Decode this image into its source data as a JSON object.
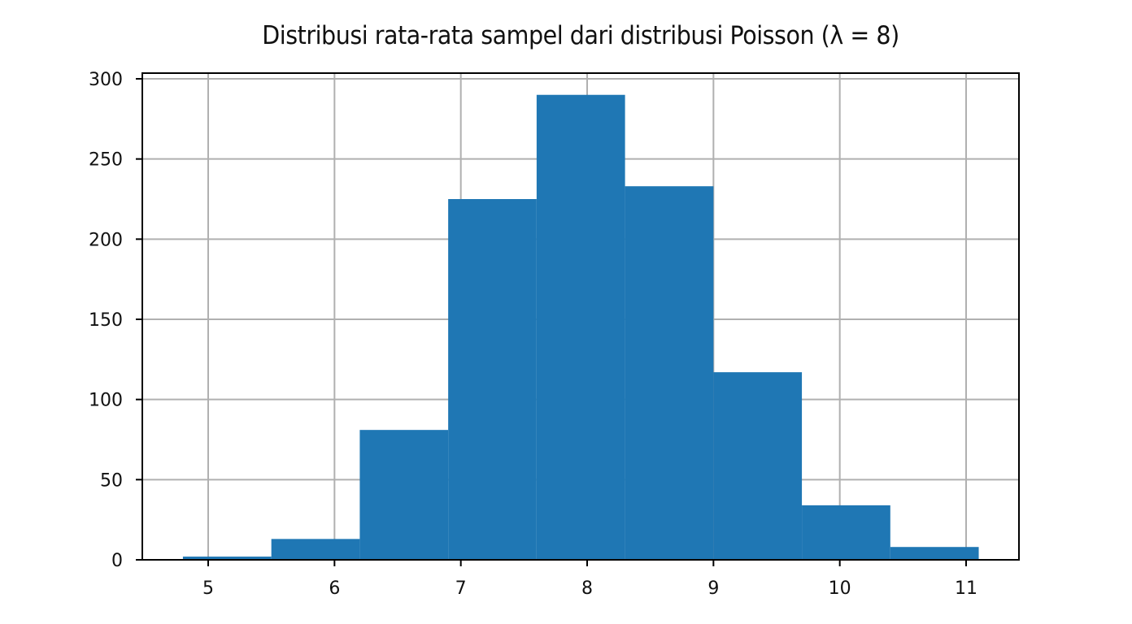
{
  "chart_data": {
    "type": "bar",
    "title": "Distribusi rata-rata sampel dari distribusi Poisson (λ = 8)",
    "xlabel": "",
    "ylabel": "",
    "bin_edges": [
      4.8,
      5.5,
      6.2,
      6.9,
      7.6,
      8.3,
      9.0,
      9.7,
      10.4,
      11.1
    ],
    "categories": [
      "4.8–5.5",
      "5.5–6.2",
      "6.2–6.9",
      "6.9–7.6",
      "7.6–8.3",
      "8.3–9.0",
      "9.0–9.7",
      "9.7–10.4",
      "10.4–11.1"
    ],
    "values": [
      2,
      13,
      81,
      225,
      290,
      233,
      117,
      34,
      8
    ],
    "xlim": [
      4.49,
      11.45
    ],
    "ylim": [
      0,
      303
    ],
    "xticks": [
      5,
      6,
      7,
      8,
      9,
      10,
      11
    ],
    "yticks": [
      0,
      50,
      100,
      150,
      200,
      250,
      300
    ],
    "grid": true,
    "bar_color": "#1f77b4",
    "grid_color": "#b0b0b0"
  }
}
